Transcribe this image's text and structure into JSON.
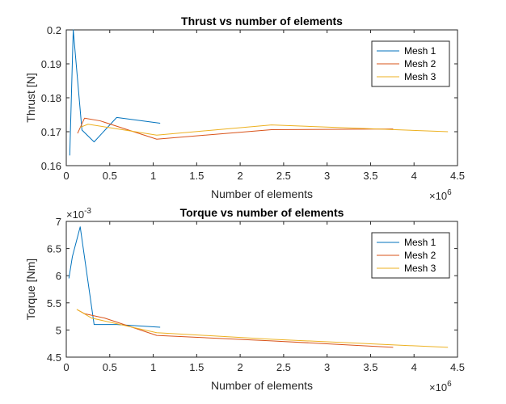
{
  "chart_data": [
    {
      "type": "line",
      "title": "Thrust vs number of elements",
      "xlabel": "Number of elements",
      "ylabel": "Thrust [N]",
      "xlim": [
        0,
        4500000
      ],
      "ylim": [
        0.16,
        0.2
      ],
      "xticks": [
        0,
        500000,
        1000000,
        1500000,
        2000000,
        2500000,
        3000000,
        3500000,
        4000000,
        4500000
      ],
      "xtick_labels": [
        "0",
        "0.5",
        "1",
        "1.5",
        "2",
        "2.5",
        "3",
        "3.5",
        "4",
        "4.5"
      ],
      "yticks": [
        0.16,
        0.17,
        0.18,
        0.19,
        0.2
      ],
      "ytick_labels": [
        "0.16",
        "0.17",
        "0.18",
        "0.19",
        "0.2"
      ],
      "x_exponent": "×10",
      "x_exponent_power": "6",
      "y_exponent": "",
      "y_exponent_power": "",
      "legend_position": "top-right",
      "grid": false,
      "series": [
        {
          "name": "Mesh 1",
          "color": "#0072BD",
          "x": [
            40000,
            80000,
            180000,
            320000,
            580000,
            1080000
          ],
          "y": [
            0.163,
            0.2,
            0.1705,
            0.167,
            0.1742,
            0.1725
          ]
        },
        {
          "name": "Mesh 2",
          "color": "#D95319",
          "x": [
            130000,
            210000,
            390000,
            1040000,
            2360000,
            3760000
          ],
          "y": [
            0.1695,
            0.174,
            0.1732,
            0.1678,
            0.1706,
            0.1708
          ]
        },
        {
          "name": "Mesh 3",
          "color": "#EDB120",
          "x": [
            160000,
            250000,
            1040000,
            2360000,
            4390000
          ],
          "y": [
            0.1713,
            0.1722,
            0.169,
            0.172,
            0.17
          ]
        }
      ]
    },
    {
      "type": "line",
      "title": "Torque vs number of elements",
      "xlabel": "Number of elements",
      "ylabel": "Torque [Nm]",
      "xlim": [
        0,
        4500000
      ],
      "ylim": [
        4.5,
        7
      ],
      "xticks": [
        0,
        500000,
        1000000,
        1500000,
        2000000,
        2500000,
        3000000,
        3500000,
        4000000,
        4500000
      ],
      "xtick_labels": [
        "0",
        "0.5",
        "1",
        "1.5",
        "2",
        "2.5",
        "3",
        "3.5",
        "4",
        "4.5"
      ],
      "yticks": [
        4.5,
        5,
        5.5,
        6,
        6.5,
        7
      ],
      "ytick_labels": [
        "4.5",
        "5",
        "5.5",
        "6",
        "6.5",
        "7"
      ],
      "x_exponent": "×10",
      "x_exponent_power": "6",
      "y_exponent": "×10",
      "y_exponent_power": "-3",
      "legend_position": "top-right",
      "grid": false,
      "series": [
        {
          "name": "Mesh 1",
          "color": "#0072BD",
          "x": [
            30000,
            70000,
            160000,
            320000,
            580000,
            1080000
          ],
          "y": [
            5.95,
            6.35,
            6.9,
            5.1,
            5.1,
            5.05
          ]
        },
        {
          "name": "Mesh 2",
          "color": "#D95319",
          "x": [
            130000,
            210000,
            440000,
            1040000,
            2360000,
            3760000
          ],
          "y": [
            5.37,
            5.3,
            5.22,
            4.9,
            4.8,
            4.68
          ]
        },
        {
          "name": "Mesh 3",
          "color": "#EDB120",
          "x": [
            120000,
            290000,
            1040000,
            2360000,
            4390000
          ],
          "y": [
            5.38,
            5.22,
            4.95,
            4.83,
            4.68
          ]
        }
      ]
    }
  ]
}
